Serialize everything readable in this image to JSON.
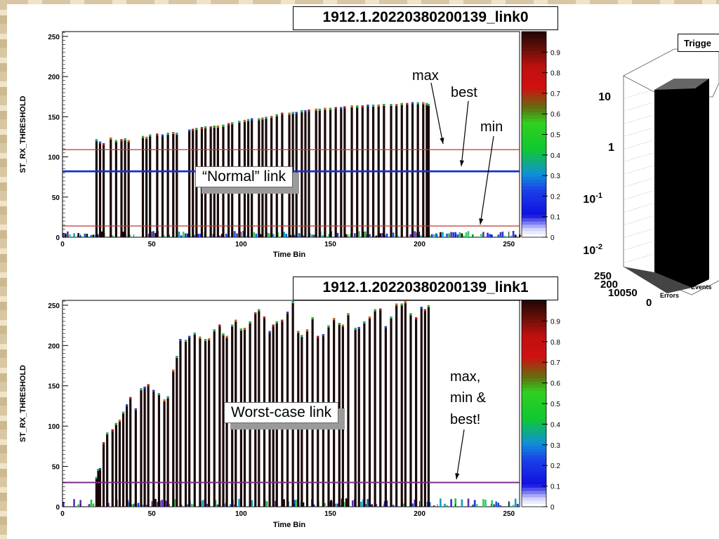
{
  "plots": [
    {
      "title": "1912.1.20220380200139_link0",
      "note": "“Normal” link",
      "annotations": [
        "max",
        "best",
        "min"
      ]
    },
    {
      "title": "1912.1.20220380200139_link1",
      "note": "Worst-case link",
      "annotations": [
        "max,",
        "min &",
        "best!"
      ]
    }
  ],
  "trigger_panel": {
    "title": "Trigge",
    "y_ticks": [
      "10",
      "1",
      "10-1",
      "10-2"
    ],
    "depth_ticks": [
      "250",
      "200",
      "150",
      "100",
      "50",
      "0"
    ],
    "axis_labels": [
      "Errors",
      "Events"
    ]
  },
  "colors": {
    "bar": "#1a0707",
    "max_line": "#c0392b",
    "best_line": "#1531c8",
    "worst_line": "#7b2a8a"
  },
  "chart_data": [
    {
      "type": "bar",
      "title": "1912.1.20220380200139_link0",
      "xlabel": "Time Bin",
      "ylabel": "ST_RX_THRESHOLD",
      "xlim": [
        0,
        256
      ],
      "ylim": [
        0,
        256
      ],
      "x_ticks": [
        0,
        50,
        100,
        150,
        200,
        250
      ],
      "y_ticks": [
        0,
        50,
        100,
        150,
        200,
        250
      ],
      "colorbar_ticks": [
        0,
        0.1,
        0.2,
        0.3,
        0.4,
        0.5,
        0.6,
        0.7,
        0.8,
        0.9
      ],
      "grid": false,
      "bars": [
        [
          19,
          122
        ],
        [
          21,
          119
        ],
        [
          23,
          117
        ],
        [
          27,
          124
        ],
        [
          30,
          121
        ],
        [
          33,
          122
        ],
        [
          35,
          123
        ],
        [
          37,
          121
        ],
        [
          45,
          126
        ],
        [
          47,
          125
        ],
        [
          49,
          128
        ],
        [
          53,
          129
        ],
        [
          56,
          128
        ],
        [
          59,
          130
        ],
        [
          62,
          131
        ],
        [
          64,
          130
        ],
        [
          71,
          134
        ],
        [
          73,
          135
        ],
        [
          75,
          136
        ],
        [
          78,
          137
        ],
        [
          80,
          138
        ],
        [
          83,
          138
        ],
        [
          85,
          139
        ],
        [
          87,
          139
        ],
        [
          90,
          140
        ],
        [
          93,
          142
        ],
        [
          95,
          143
        ],
        [
          99,
          145
        ],
        [
          102,
          146
        ],
        [
          104,
          147
        ],
        [
          106,
          148
        ],
        [
          110,
          148
        ],
        [
          112,
          149
        ],
        [
          114,
          150
        ],
        [
          117,
          151
        ],
        [
          120,
          153
        ],
        [
          123,
          155
        ],
        [
          127,
          155
        ],
        [
          129,
          156
        ],
        [
          131,
          156
        ],
        [
          134,
          158
        ],
        [
          136,
          158
        ],
        [
          138,
          159
        ],
        [
          142,
          160
        ],
        [
          144,
          160
        ],
        [
          147,
          161
        ],
        [
          150,
          161
        ],
        [
          153,
          162
        ],
        [
          156,
          162
        ],
        [
          158,
          163
        ],
        [
          162,
          164
        ],
        [
          165,
          164
        ],
        [
          168,
          164
        ],
        [
          171,
          165
        ],
        [
          174,
          165
        ],
        [
          177,
          165
        ],
        [
          180,
          166
        ],
        [
          184,
          166
        ],
        [
          187,
          166
        ],
        [
          190,
          167
        ],
        [
          193,
          167
        ],
        [
          196,
          168
        ],
        [
          199,
          168
        ],
        [
          202,
          168
        ],
        [
          204,
          167
        ],
        [
          205,
          166
        ]
      ],
      "lines": [
        {
          "name": "max",
          "y": 109
        },
        {
          "name": "best",
          "y": 82
        },
        {
          "name": "min",
          "y": 14
        }
      ]
    },
    {
      "type": "bar",
      "title": "1912.1.20220380200139_link1",
      "xlabel": "Time Bin",
      "ylabel": "ST_RX_THRESHOLD",
      "xlim": [
        0,
        256
      ],
      "ylim": [
        0,
        256
      ],
      "x_ticks": [
        0,
        50,
        100,
        150,
        200,
        250
      ],
      "y_ticks": [
        0,
        50,
        100,
        150,
        200,
        250
      ],
      "colorbar_ticks": [
        0,
        0.1,
        0.2,
        0.3,
        0.4,
        0.5,
        0.6,
        0.7,
        0.8,
        0.9
      ],
      "grid": false,
      "bars": [
        [
          19,
          37
        ],
        [
          20,
          47
        ],
        [
          21,
          48
        ],
        [
          23,
          80
        ],
        [
          25,
          92
        ],
        [
          28,
          96
        ],
        [
          30,
          104
        ],
        [
          32,
          108
        ],
        [
          34,
          118
        ],
        [
          36,
          127
        ],
        [
          38,
          136
        ],
        [
          41,
          122
        ],
        [
          44,
          147
        ],
        [
          46,
          149
        ],
        [
          48,
          152
        ],
        [
          51,
          145
        ],
        [
          54,
          141
        ],
        [
          57,
          133
        ],
        [
          59,
          137
        ],
        [
          62,
          170
        ],
        [
          64,
          187
        ],
        [
          66,
          208
        ],
        [
          69,
          207
        ],
        [
          71,
          212
        ],
        [
          74,
          216
        ],
        [
          77,
          211
        ],
        [
          80,
          208
        ],
        [
          82,
          209
        ],
        [
          85,
          220
        ],
        [
          88,
          226
        ],
        [
          90,
          215
        ],
        [
          92,
          212
        ],
        [
          95,
          226
        ],
        [
          97,
          232
        ],
        [
          100,
          221
        ],
        [
          102,
          222
        ],
        [
          105,
          230
        ],
        [
          108,
          241
        ],
        [
          110,
          245
        ],
        [
          113,
          236
        ],
        [
          116,
          218
        ],
        [
          118,
          226
        ],
        [
          120,
          230
        ],
        [
          123,
          232
        ],
        [
          126,
          242
        ],
        [
          129,
          255
        ],
        [
          132,
          218
        ],
        [
          134,
          213
        ],
        [
          137,
          220
        ],
        [
          140,
          235
        ],
        [
          143,
          212
        ],
        [
          146,
          214
        ],
        [
          149,
          225
        ],
        [
          152,
          234
        ],
        [
          155,
          228
        ],
        [
          157,
          226
        ],
        [
          160,
          240
        ],
        [
          164,
          222
        ],
        [
          166,
          223
        ],
        [
          169,
          230
        ],
        [
          172,
          236
        ],
        [
          175,
          245
        ],
        [
          178,
          246
        ],
        [
          181,
          224
        ],
        [
          184,
          236
        ],
        [
          187,
          252
        ],
        [
          190,
          252
        ],
        [
          192,
          255
        ],
        [
          195,
          240
        ],
        [
          198,
          235
        ],
        [
          201,
          248
        ],
        [
          203,
          245
        ],
        [
          205,
          250
        ]
      ],
      "lines": [
        {
          "name": "max, min & best",
          "y": 30
        }
      ]
    }
  ]
}
